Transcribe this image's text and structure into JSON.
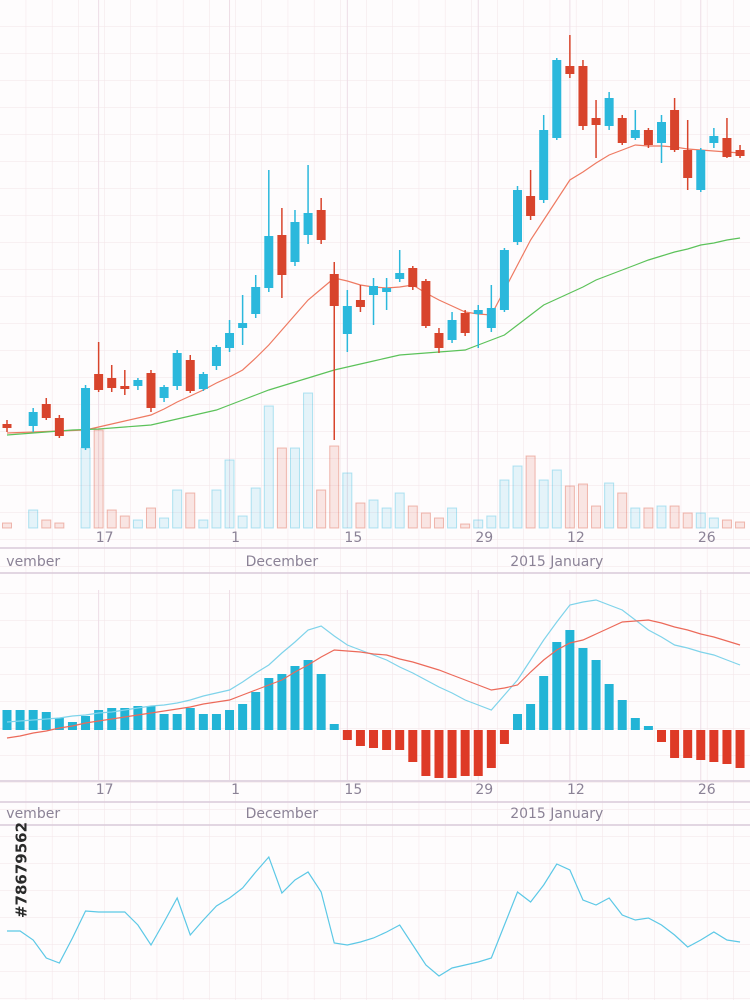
{
  "chart_data": [
    {
      "type": "candlestick",
      "categories": [
        null,
        null,
        null,
        null,
        null,
        null,
        null,
        "17",
        null,
        null,
        null,
        null,
        null,
        null,
        null,
        null,
        null,
        "1",
        null,
        null,
        null,
        null,
        null,
        null,
        null,
        null,
        "15",
        null,
        null,
        null,
        null,
        null,
        null,
        null,
        null,
        null,
        "29",
        null,
        null,
        null,
        null,
        null,
        null,
        "12",
        null,
        null,
        null,
        null,
        null,
        null,
        null,
        null,
        null,
        "26",
        null,
        null,
        null
      ],
      "month_labels": [
        null,
        null,
        "vember",
        null,
        null,
        null,
        null,
        null,
        null,
        null,
        null,
        null,
        null,
        null,
        null,
        null,
        null,
        null,
        null,
        null,
        null,
        "December",
        null,
        null,
        null,
        null,
        null,
        null,
        null,
        null,
        null,
        null,
        null,
        null,
        null,
        null,
        null,
        null,
        null,
        null,
        null,
        null,
        "2015 January",
        null,
        null,
        null,
        null,
        null,
        null,
        null,
        null,
        null,
        null,
        null,
        null,
        null,
        null
      ],
      "open": [
        23.2,
        null,
        22.8,
        27.2,
        24.4,
        null,
        18.4,
        33.2,
        32.4,
        30.8,
        30.8,
        33.4,
        28.4,
        30.8,
        36,
        30.2,
        34.8,
        38.4,
        42.4,
        45.2,
        50.4,
        61,
        55.6,
        61,
        66,
        53.2,
        41.2,
        48,
        49,
        49.6,
        52.2,
        54.4,
        51.8,
        41.4,
        40,
        45.4,
        45.2,
        42.4,
        46,
        59.6,
        68.8,
        68,
        80.4,
        94.8,
        94.8,
        84.4,
        82.8,
        84.4,
        80.4,
        82,
        79.4,
        86,
        78,
        70,
        79.4,
        80.4,
        78
      ],
      "high": [
        24,
        null,
        26.4,
        28.4,
        25,
        null,
        31,
        39.6,
        35,
        34,
        32.4,
        34,
        31,
        38,
        37,
        33.6,
        39,
        44,
        49,
        53,
        74,
        66.4,
        66,
        75,
        68.4,
        55.6,
        50,
        51,
        52.4,
        52.4,
        58,
        54.8,
        52.2,
        42.4,
        45.6,
        46,
        47,
        51,
        58.4,
        70.8,
        74,
        85,
        96.4,
        101,
        96,
        88,
        89.6,
        85,
        86,
        82.4,
        85,
        88.4,
        84,
        78.4,
        82.4,
        84.4,
        79
      ],
      "low": [
        21.6,
        null,
        21.6,
        24,
        20.4,
        null,
        18,
        29.6,
        29.6,
        29,
        30,
        25.6,
        27.6,
        30,
        29.4,
        29.8,
        34,
        37.6,
        39,
        44.4,
        49.6,
        48.4,
        54.8,
        59.2,
        59.2,
        20,
        37.6,
        45.6,
        43,
        46,
        51.6,
        50,
        42.4,
        37.4,
        39.4,
        40.8,
        38.4,
        41.6,
        45.6,
        59,
        64,
        67.4,
        80,
        92.4,
        82,
        76.4,
        82,
        79,
        80,
        78.4,
        75.4,
        77.6,
        70,
        69.6,
        78.4,
        76.4,
        76.4
      ],
      "close": [
        22.4,
        null,
        25.6,
        24.4,
        20.8,
        null,
        30.4,
        30,
        30.4,
        30.2,
        32,
        26.4,
        30.6,
        37.4,
        29.8,
        33.2,
        38.6,
        41.4,
        43.4,
        50.6,
        60.8,
        53,
        63.6,
        65.4,
        60,
        46.8,
        46.8,
        46.6,
        50.8,
        50.4,
        53.4,
        50.6,
        42.8,
        38.4,
        44,
        41.4,
        46,
        46.4,
        58,
        70,
        64.8,
        82,
        96,
        93.2,
        82.8,
        83,
        88.4,
        79.4,
        82,
        79,
        83.6,
        78,
        72.4,
        78,
        80.8,
        76.6,
        76.8
      ],
      "up_color": "#2bb8dc",
      "down_color": "#d8442c",
      "ylim": [
        0,
        108
      ],
      "moving_averages": [
        {
          "color": "#ee7a62",
          "values": [
            21.4,
            21.5,
            21.6,
            21.7,
            21.8,
            21.9,
            22,
            22.6,
            23.2,
            23.8,
            24.4,
            25,
            26.2,
            27.6,
            28.8,
            30,
            31.4,
            32.6,
            34,
            36.4,
            39,
            42,
            45,
            48,
            50.2,
            52.4,
            51.8,
            51,
            50.6,
            50.4,
            50.6,
            51,
            49.4,
            48,
            46.8,
            45.6,
            45.2,
            45,
            50,
            55,
            60,
            64,
            68,
            72,
            73.6,
            75.4,
            77,
            78,
            79,
            78.8,
            78.8,
            78.6,
            78.2,
            78,
            77.8,
            77.6,
            77.4
          ]
        },
        {
          "color": "#5cc25a",
          "values": [
            21,
            21.2,
            21.4,
            21.6,
            21.8,
            22,
            22.1,
            22.2,
            22.4,
            22.6,
            22.8,
            23,
            23.6,
            24.2,
            24.8,
            25.4,
            26,
            27,
            28,
            29,
            30,
            30.8,
            31.6,
            32.4,
            33.2,
            34,
            34.6,
            35.2,
            35.8,
            36.4,
            37,
            37.2,
            37.4,
            37.6,
            37.8,
            38,
            39,
            40,
            41,
            43,
            45,
            47,
            48.2,
            49.4,
            50.6,
            52,
            53,
            54,
            55,
            56,
            56.8,
            57.6,
            58.2,
            59,
            59.4,
            60,
            60.4
          ]
        }
      ],
      "volume": {
        "ylim": [
          0,
          140
        ],
        "values": [
          5,
          null,
          18,
          8,
          5,
          null,
          80,
          98,
          18,
          12,
          8,
          20,
          10,
          38,
          35,
          8,
          38,
          68,
          12,
          40,
          122,
          80,
          80,
          135,
          38,
          82,
          55,
          25,
          28,
          20,
          35,
          22,
          15,
          10,
          20,
          4,
          8,
          12,
          48,
          62,
          72,
          48,
          58,
          42,
          44,
          22,
          45,
          35,
          20,
          20,
          22,
          22,
          15,
          15,
          10,
          8,
          6
        ]
      }
    },
    {
      "type": "macd",
      "categories": [
        null,
        null,
        null,
        null,
        null,
        null,
        null,
        "17",
        null,
        null,
        null,
        null,
        null,
        null,
        null,
        null,
        null,
        "1",
        null,
        null,
        null,
        null,
        null,
        null,
        null,
        null,
        "15",
        null,
        null,
        null,
        null,
        null,
        null,
        null,
        null,
        null,
        "29",
        null,
        null,
        null,
        null,
        null,
        null,
        "12",
        null,
        null,
        null,
        null,
        null,
        null,
        null,
        null,
        null,
        "26",
        null,
        null,
        null
      ],
      "month_labels": [
        null,
        null,
        "vember",
        null,
        null,
        null,
        null,
        null,
        null,
        null,
        null,
        null,
        null,
        null,
        null,
        null,
        null,
        null,
        null,
        null,
        null,
        "December",
        null,
        null,
        null,
        null,
        null,
        null,
        null,
        null,
        null,
        null,
        null,
        null,
        null,
        null,
        null,
        null,
        null,
        null,
        null,
        null,
        "2015 January",
        null,
        null,
        null,
        null,
        null,
        null,
        null,
        null,
        null,
        null,
        null,
        null,
        null,
        null
      ],
      "ylim": [
        -6,
        14
      ],
      "histogram": {
        "up_color": "#22b4d6",
        "down_color": "#de3a26",
        "values": [
          2,
          2,
          2,
          1.8,
          1.2,
          0.8,
          1.4,
          2,
          2.2,
          2.2,
          2.4,
          2.4,
          1.6,
          1.6,
          2.2,
          1.6,
          1.6,
          2,
          2.6,
          3.8,
          5.2,
          5.6,
          6.4,
          7,
          5.6,
          0.6,
          -1,
          -1.6,
          -1.8,
          -2,
          -2,
          -3.2,
          -4.6,
          -4.8,
          -4.8,
          -4.6,
          -4.6,
          -3.8,
          -1.4,
          1.6,
          2.6,
          5.4,
          8.8,
          10,
          8.2,
          7,
          4.6,
          3,
          1.2,
          0.4,
          -1.2,
          -2.8,
          -2.8,
          -3,
          -3.2,
          -3.4,
          -3.8
        ]
      },
      "lines": [
        {
          "color": "#7fd3ea",
          "values": [
            0.8,
            0.9,
            1,
            1.1,
            1.2,
            1.4,
            1.5,
            1.7,
            1.8,
            2,
            2.2,
            2.4,
            2.5,
            2.7,
            3,
            3.4,
            3.7,
            4,
            4.8,
            5.7,
            6.5,
            7.7,
            8.8,
            10,
            10.4,
            9.4,
            8.5,
            8,
            7.5,
            7,
            6.3,
            5.7,
            5,
            4.3,
            3.7,
            3,
            2.5,
            2,
            3.5,
            5,
            7,
            9,
            10.8,
            12.5,
            12.8,
            13,
            12.5,
            12,
            11,
            10,
            9.3,
            8.5,
            8.2,
            7.8,
            7.5,
            7,
            6.5
          ]
        },
        {
          "color": "#ec6a5a",
          "values": [
            -0.8,
            -0.6,
            -0.3,
            -0.1,
            0.2,
            0.4,
            0.7,
            0.9,
            1.1,
            1.3,
            1.5,
            1.7,
            1.9,
            2.1,
            2.3,
            2.6,
            2.8,
            3,
            3.5,
            4,
            4.5,
            5,
            5.8,
            6.5,
            7.3,
            8,
            7.9,
            7.8,
            7.6,
            7.5,
            7.1,
            6.8,
            6.4,
            6,
            5.5,
            5,
            4.5,
            4,
            4.2,
            4.5,
            5.8,
            7,
            8,
            8.7,
            9,
            9.6,
            10.2,
            10.8,
            10.9,
            11,
            10.7,
            10.3,
            10,
            9.6,
            9.3,
            8.9,
            8.5
          ]
        }
      ]
    },
    {
      "type": "line",
      "color": "#5cc8e6",
      "ylim": [
        0,
        17
      ],
      "values": [
        6.9,
        6.9,
        6,
        4.2,
        3.7,
        6.2,
        8.9,
        8.8,
        8.8,
        8.8,
        7.5,
        5.5,
        7.8,
        10.2,
        6.5,
        8,
        9.4,
        10.2,
        11.2,
        12.8,
        14.3,
        10.7,
        12,
        12.8,
        10.8,
        5.7,
        5.5,
        5.8,
        6.2,
        6.8,
        7.5,
        5.5,
        3.5,
        2.4,
        3.2,
        3.5,
        3.8,
        4.2,
        7.5,
        10.8,
        9.8,
        11.5,
        13.6,
        13,
        10,
        9.5,
        10.2,
        8.5,
        8,
        8.2,
        7.5,
        6.5,
        5.3,
        6,
        6.8,
        6,
        5.8
      ]
    }
  ],
  "watermark": "#78679562"
}
